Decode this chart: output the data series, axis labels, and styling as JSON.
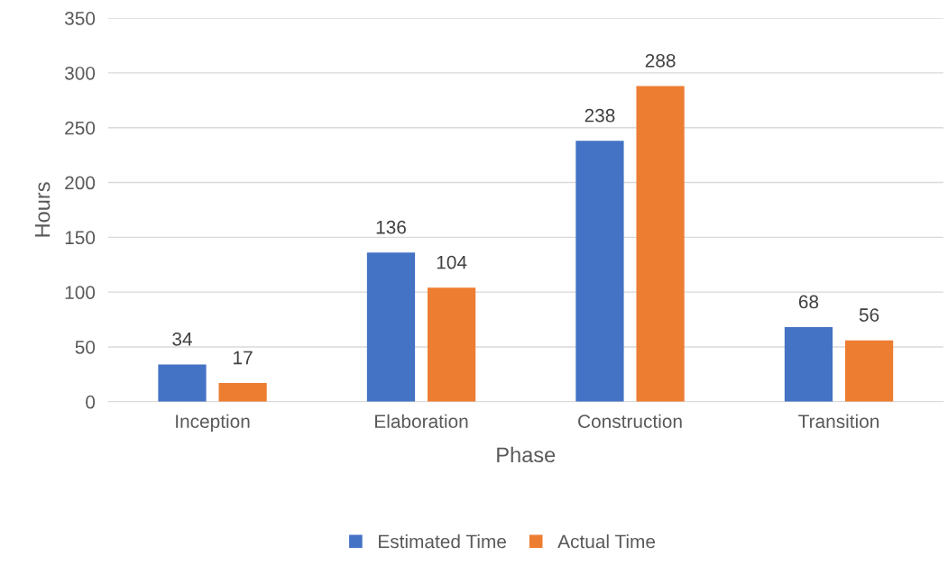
{
  "chart_data": {
    "type": "bar",
    "xlabel": "Phase",
    "ylabel": "Hours",
    "categories": [
      "Inception",
      "Elaboration",
      "Construction",
      "Transition"
    ],
    "series": [
      {
        "name": "Estimated Time",
        "color": "#4472c4",
        "values": [
          34,
          136,
          238,
          68
        ]
      },
      {
        "name": "Actual Time",
        "color": "#ed7d31",
        "values": [
          17,
          104,
          288,
          56
        ]
      }
    ],
    "ylim": [
      0,
      350
    ],
    "yticks": [
      0,
      50,
      100,
      150,
      200,
      250,
      300,
      350
    ],
    "grid": "y",
    "legend": "bottom",
    "data_labels": true
  }
}
